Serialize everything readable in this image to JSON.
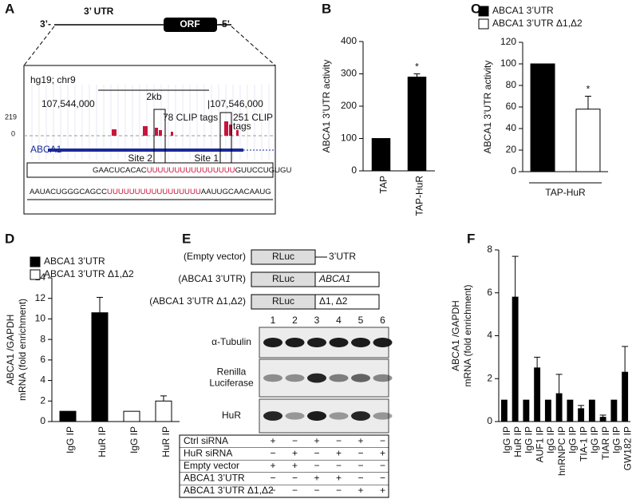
{
  "panels": [
    "A",
    "B",
    "C",
    "D",
    "E",
    "F"
  ],
  "diagram_a": {
    "left_end": "3’-",
    "utr": "3’ UTR",
    "orf": "ORF",
    "right_end": "-5’",
    "assembly": "hg19; chr9",
    "scale": "2kb",
    "coord_left": "107,544,000",
    "coord_right": "|107,546,000",
    "track_max": "219",
    "track_zero": "0",
    "tags_site2": "78 CLIP tags",
    "tags_site1": [
      "251 CLIP",
      "tags"
    ],
    "gene": "ABCA1",
    "site2": "Site 2",
    "site1": "Site 1",
    "seq1": [
      "GAACUCACAC",
      "UUUUUUUUUUUUUUUU",
      "GUUCCUGUGU"
    ],
    "seq2": [
      "AAUACUGGGCAGCC",
      "UUUUUUUUUUUUUUUUU",
      "AAUUGCAACAAUG"
    ]
  },
  "chart_data": [
    {
      "type": "bar",
      "ylabel": [
        "ABCA1 3’UTR activity"
      ],
      "categories": [
        "TAP",
        "TAP-HuR"
      ],
      "values": [
        100,
        290
      ],
      "errors": [
        null,
        10
      ],
      "significance": [
        null,
        "*"
      ],
      "color": "#000000",
      "ylim": [
        0,
        400
      ],
      "yticks": [
        0,
        100,
        200,
        300,
        400
      ]
    },
    {
      "type": "bar",
      "ylabel": [
        "ABCA1 3’UTR activity"
      ],
      "categories": [
        "TAP-HuR"
      ],
      "series": [
        {
          "name": "ABCA1 3’UTR",
          "color": "#000000",
          "values": [
            100
          ]
        },
        {
          "name": "ABCA1 3’UTR Δ1,Δ2",
          "color": "#ffffff",
          "values": [
            58
          ],
          "errors": [
            12
          ],
          "significance": [
            "*"
          ]
        }
      ],
      "ylim": [
        0,
        120
      ],
      "yticks": [
        0,
        20,
        40,
        60,
        80,
        100,
        120
      ]
    },
    {
      "type": "bar",
      "ylabel": [
        "ABCA1 /GAPDH",
        "mRNA (fold enrichment)"
      ],
      "categories": [
        "IgG IP",
        "HuR IP",
        "IgG IP",
        "HuR IP"
      ],
      "series": [
        {
          "name": "ABCA1 3’UTR",
          "color": "#000000",
          "values": [
            1,
            10.6,
            null,
            null
          ],
          "errors": [
            null,
            1.5,
            null,
            null
          ]
        },
        {
          "name": "ABCA1 3’UTR Δ1,Δ2",
          "color": "#ffffff",
          "values": [
            null,
            null,
            1,
            2
          ],
          "errors": [
            null,
            null,
            null,
            0.5
          ]
        }
      ],
      "ylim": [
        0,
        14
      ],
      "yticks": [
        0,
        2,
        4,
        6,
        8,
        10,
        12,
        14
      ]
    },
    {
      "type": "bar",
      "ylabel": [
        "ABCA1 /GAPDH",
        "mRNA (fold enrichment)"
      ],
      "categories": [
        "IgG IP",
        "HuR IP",
        "IgG IP",
        "AUF1 IP",
        "IgG IP",
        "hnRNPC IP",
        "IgG IP",
        "TIA-1 IP",
        "IgG IP",
        "TIAR IP",
        "IgG IP",
        "GW182 IP"
      ],
      "values": [
        1,
        5.8,
        1,
        2.5,
        1,
        1.3,
        1,
        0.6,
        1,
        0.2,
        1,
        2.3
      ],
      "errors": [
        null,
        1.9,
        null,
        0.5,
        null,
        0.9,
        null,
        0.15,
        null,
        0.1,
        null,
        1.2
      ],
      "color": "#000000",
      "ylim": [
        0,
        8
      ],
      "yticks": [
        0,
        2,
        4,
        6,
        8
      ]
    }
  ],
  "blot_e": {
    "constructs": [
      {
        "label": "(Empty vector)",
        "box": "RLuc",
        "tail": "3’UTR"
      },
      {
        "label": "(ABCA1 3’UTR)",
        "box": "RLuc",
        "tail": "ABCA1"
      },
      {
        "label": "(ABCA1 3’UTR Δ1,Δ2)",
        "box": "RLuc",
        "tail": "Δ1, Δ2"
      }
    ],
    "lanes": [
      "1",
      "2",
      "3",
      "4",
      "5",
      "6"
    ],
    "blots": [
      [
        "α-Tubulin"
      ],
      [
        "Renilla",
        "Luciferase"
      ],
      [
        "HuR"
      ]
    ],
    "table": [
      {
        "label": "Ctrl siRNA",
        "cells": [
          "+",
          "−",
          "+",
          "−",
          "+",
          "−"
        ]
      },
      {
        "label": "HuR siRNA",
        "cells": [
          "−",
          "+",
          "−",
          "+",
          "−",
          "+"
        ]
      },
      {
        "label": "Empty vector",
        "cells": [
          "+",
          "+",
          "−",
          "−",
          "−",
          "−"
        ]
      },
      {
        "label": "ABCA1 3’UTR",
        "cells": [
          "−",
          "−",
          "+",
          "+",
          "−",
          "−"
        ]
      },
      {
        "label": "ABCA1 3’UTR Δ1,Δ2",
        "cells": [
          "−",
          "−",
          "−",
          "−",
          "+",
          "+"
        ]
      }
    ]
  }
}
